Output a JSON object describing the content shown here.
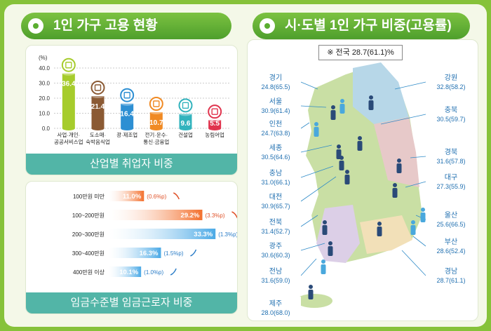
{
  "left": {
    "title": "1인 가구 고용 현황",
    "industry_caption": "산업별 취업자 비중",
    "wage_caption": "임금수준별 임금근로자 비중"
  },
  "right": {
    "title": "시·도별 1인 가구 비중(고용률)",
    "national": "※ 전국 28.7(61.1)%"
  },
  "chart_data": [
    {
      "type": "bar",
      "unit_label": "(%)",
      "ylim": [
        0,
        40
      ],
      "yticks": [
        "0.0",
        "10.0",
        "20.0",
        "30.0",
        "40.0"
      ],
      "grid": true,
      "categories": [
        "사업·개인·\n공공서비스업",
        "도소매·\n숙박음식업",
        "광·제조업",
        "전기·운수·\n통신·금융업",
        "건설업",
        "농림어업"
      ],
      "values": [
        36.4,
        21.4,
        16.4,
        10.7,
        9.6,
        5.5
      ],
      "value_labels": [
        "36.4",
        "21.4",
        "16.4",
        "10.7",
        "9.6",
        "5.5"
      ],
      "colors": [
        "#a6cc2c",
        "#8b5a34",
        "#2d8fd3",
        "#f08a24",
        "#32b3bd",
        "#e0334d"
      ],
      "icons": [
        "document-icon",
        "food-tray-icon",
        "gear-icon",
        "transfer-icon",
        "construction-icon",
        "grain-icon"
      ]
    },
    {
      "type": "bar",
      "orientation": "horizontal",
      "xlim": [
        0,
        35
      ],
      "categories": [
        "100만원 미만",
        "100~200만원",
        "200~300만원",
        "300~400만원",
        "400만원 이상"
      ],
      "values": [
        11.0,
        29.2,
        33.3,
        16.3,
        10.1
      ],
      "value_labels": [
        "11.0%",
        "29.2%",
        "33.3%",
        "16.3%",
        "10.1%"
      ],
      "changes": [
        "(0.6%p)",
        "(3.3%p)",
        "(1.3%p)",
        "(1.5%p)",
        "(1.0%p)"
      ],
      "directions": [
        "down",
        "down",
        "up",
        "up",
        "up"
      ],
      "colors": [
        "#f36f2c",
        "#f36f2c",
        "#4aa9e6",
        "#4aa9e6",
        "#4aa9e6"
      ]
    },
    {
      "type": "map",
      "legend": {
        "male_color": "#2a4a78",
        "female_color": "#49a8dd"
      },
      "regions": [
        {
          "name": "경기",
          "value": "24.8(65.5)"
        },
        {
          "name": "서울",
          "value": "30.9(61.4)"
        },
        {
          "name": "인천",
          "value": "24.7(63.8)"
        },
        {
          "name": "세종",
          "value": "30.5(64.6)"
        },
        {
          "name": "충남",
          "value": "31.0(66.1)"
        },
        {
          "name": "대전",
          "value": "30.9(65.7)"
        },
        {
          "name": "전북",
          "value": "31.4(52.7)"
        },
        {
          "name": "광주",
          "value": "30.6(60.3)"
        },
        {
          "name": "전남",
          "value": "31.6(59.0)"
        },
        {
          "name": "제주",
          "value": "28.0(68.0)"
        },
        {
          "name": "강원",
          "value": "32.8(58.2)"
        },
        {
          "name": "충북",
          "value": "30.5(59.7)"
        },
        {
          "name": "경북",
          "value": "31.6(57.8)"
        },
        {
          "name": "대구",
          "value": "27.3(55.9)"
        },
        {
          "name": "울산",
          "value": "25.6(66.5)"
        },
        {
          "name": "부산",
          "value": "28.6(52.4)"
        },
        {
          "name": "경남",
          "value": "28.7(61.1)"
        }
      ]
    }
  ]
}
